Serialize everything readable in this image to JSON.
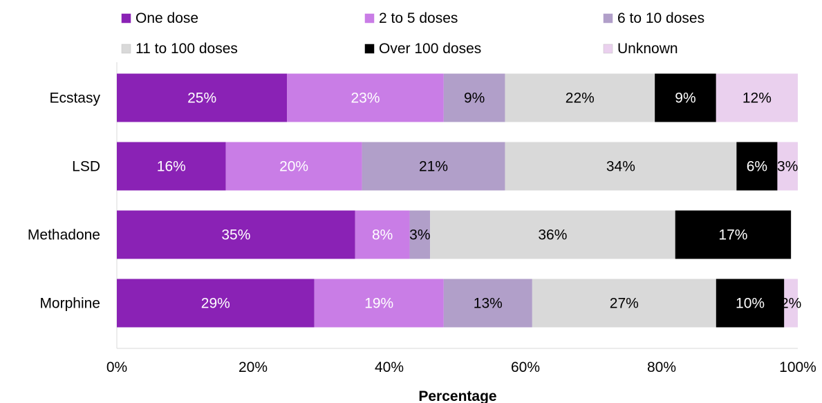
{
  "chart_data": {
    "type": "bar",
    "orientation": "horizontal",
    "stacked": true,
    "normalized_percent": true,
    "title": "",
    "xlabel": "Percentage",
    "ylabel": "",
    "xlim": [
      0,
      100
    ],
    "x_ticks": [
      "0%",
      "20%",
      "40%",
      "60%",
      "80%",
      "100%"
    ],
    "categories": [
      "Ecstasy",
      "LSD",
      "Methadone",
      "Morphine"
    ],
    "series": [
      {
        "name": "One dose",
        "color": "#8a22b5",
        "label_color": "#ffffff",
        "values": [
          25,
          16,
          35,
          29
        ],
        "labels": [
          "25%",
          "16%",
          "35%",
          "29%"
        ]
      },
      {
        "name": "2 to 5 doses",
        "color": "#c97de6",
        "label_color": "#ffffff",
        "values": [
          23,
          20,
          8,
          19
        ],
        "labels": [
          "23%",
          "20%",
          "8%",
          "19%"
        ]
      },
      {
        "name": "6 to 10 doses",
        "color": "#b19fc9",
        "label_color": "#000000",
        "values": [
          9,
          21,
          3,
          13
        ],
        "labels": [
          "9%",
          "21%",
          "3%",
          "13%"
        ]
      },
      {
        "name": "11 to 100 doses",
        "color": "#d9d9d9",
        "label_color": "#000000",
        "values": [
          22,
          34,
          36,
          27
        ],
        "labels": [
          "22%",
          "34%",
          "36%",
          "27%"
        ]
      },
      {
        "name": "Over 100 doses",
        "color": "#000000",
        "label_color": "#ffffff",
        "values": [
          9,
          6,
          17,
          10
        ],
        "labels": [
          "9%",
          "6%",
          "17%",
          "10%"
        ]
      },
      {
        "name": "Unknown",
        "color": "#ead0ee",
        "label_color": "#000000",
        "values": [
          12,
          3,
          0,
          2
        ],
        "labels": [
          "12%",
          "3%",
          "",
          "2%"
        ]
      }
    ],
    "legend_position": "top",
    "grid": false
  }
}
